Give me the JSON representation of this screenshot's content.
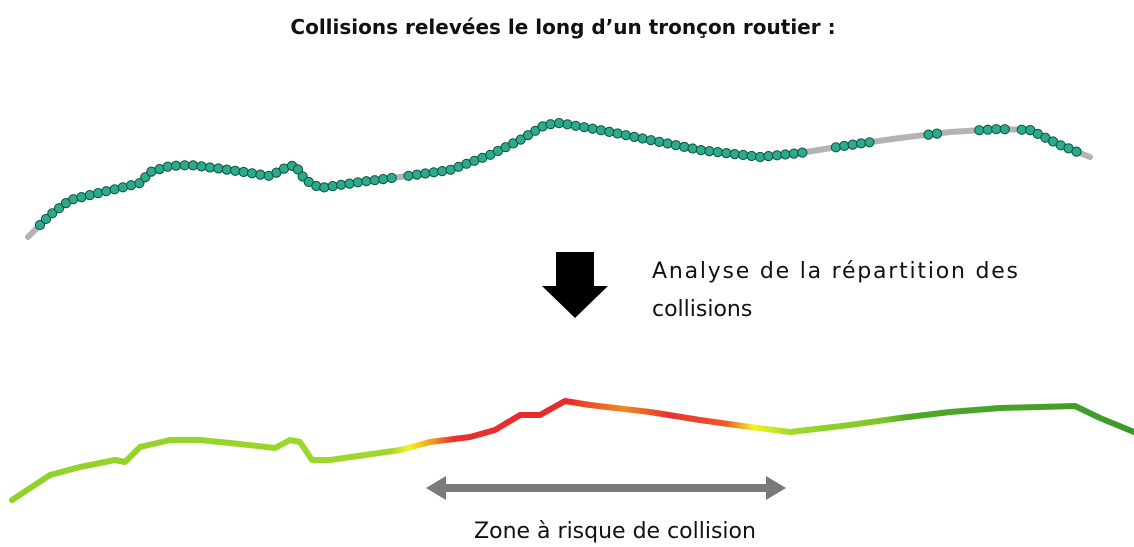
{
  "title": "Collisions relevées le long d’un tronçon routier :",
  "analysis": {
    "lines": [
      "Analyse de la répartition des",
      "collisions"
    ]
  },
  "zone_label": "Zone à risque de collision"
}
